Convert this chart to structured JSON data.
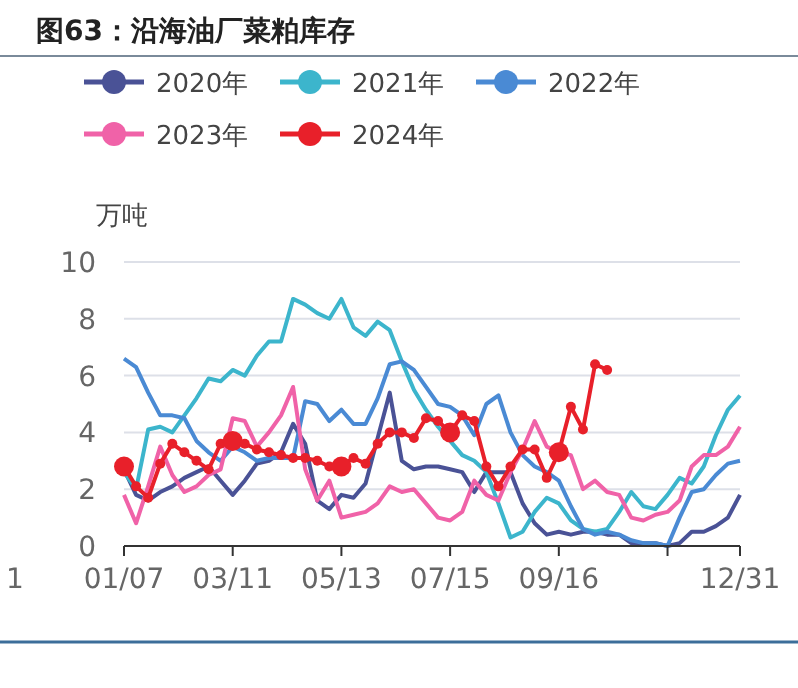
{
  "chart_data": {
    "type": "line",
    "title": "图63：沿海油厂菜粕库存",
    "ylabel": "万吨",
    "annotations": [
      "1"
    ],
    "categories": [
      "01/07",
      null,
      null,
      null,
      null,
      null,
      null,
      null,
      null,
      "03/11",
      null,
      null,
      null,
      null,
      null,
      null,
      null,
      null,
      "05/13",
      null,
      null,
      null,
      null,
      null,
      null,
      null,
      null,
      "07/15",
      null,
      null,
      null,
      null,
      null,
      null,
      null,
      null,
      "09/16",
      null,
      null,
      null,
      null,
      null,
      null,
      null,
      null,
      null,
      null,
      null,
      null,
      null,
      null,
      "12/31"
    ],
    "ylim": [
      0,
      10
    ],
    "yticks": [
      0,
      2,
      4,
      6,
      8,
      10
    ],
    "grid": "y",
    "legend": "top",
    "line_style": "solid",
    "series": [
      {
        "name": "2020年",
        "color": "#4a5296",
        "values": [
          2.7,
          1.8,
          1.6,
          1.9,
          2.1,
          2.4,
          2.6,
          2.8,
          2.3,
          1.8,
          2.3,
          2.9,
          3.0,
          3.3,
          4.3,
          3.6,
          1.6,
          1.3,
          1.8,
          1.7,
          2.2,
          3.8,
          5.4,
          3.0,
          2.7,
          2.8,
          2.8,
          2.7,
          2.6,
          1.9,
          2.6,
          2.6,
          2.6,
          1.5,
          0.8,
          0.4,
          0.5,
          0.4,
          0.5,
          0.5,
          0.4,
          0.4,
          0.1,
          0.1,
          0.1,
          0.0,
          0.1,
          0.5,
          0.5,
          0.7,
          1.0,
          1.8
        ]
      },
      {
        "name": "2021年",
        "color": "#3cb5cc",
        "values": [
          2.6,
          2.0,
          4.1,
          4.2,
          4.0,
          4.6,
          5.2,
          5.9,
          5.8,
          6.2,
          6.0,
          6.7,
          7.2,
          7.2,
          8.7,
          8.5,
          8.2,
          8.0,
          8.7,
          7.7,
          7.4,
          7.9,
          7.6,
          6.5,
          5.5,
          4.8,
          4.2,
          3.7,
          3.2,
          3.0,
          2.6,
          1.5,
          0.3,
          0.5,
          1.2,
          1.7,
          1.5,
          0.9,
          0.6,
          0.5,
          0.6,
          1.2,
          1.9,
          1.4,
          1.3,
          1.8,
          2.4,
          2.2,
          2.8,
          3.9,
          4.8,
          5.3
        ]
      },
      {
        "name": "2022年",
        "color": "#4a8ad4",
        "values": [
          6.6,
          6.3,
          5.4,
          4.6,
          4.6,
          4.5,
          3.7,
          3.3,
          3.0,
          3.5,
          3.3,
          3.0,
          3.1,
          3.1,
          3.1,
          5.1,
          5.0,
          4.4,
          4.8,
          4.3,
          4.3,
          5.2,
          6.4,
          6.5,
          6.2,
          5.6,
          5.0,
          4.9,
          4.6,
          3.9,
          5.0,
          5.3,
          4.0,
          3.2,
          2.8,
          2.6,
          2.3,
          1.4,
          0.6,
          0.4,
          0.5,
          0.4,
          0.2,
          0.1,
          0.1,
          0.0,
          1.0,
          1.9,
          2.0,
          2.5,
          2.9,
          3.0
        ]
      },
      {
        "name": "2023年",
        "color": "#f062a8",
        "values": [
          1.8,
          0.8,
          2.1,
          3.5,
          2.5,
          1.9,
          2.1,
          2.5,
          2.7,
          4.5,
          4.4,
          3.5,
          4.0,
          4.6,
          5.6,
          2.7,
          1.6,
          2.3,
          1.0,
          1.1,
          1.2,
          1.5,
          2.1,
          1.9,
          2.0,
          1.5,
          1.0,
          0.9,
          1.2,
          2.3,
          1.8,
          1.6,
          2.6,
          3.4,
          4.4,
          3.5,
          3.3,
          3.2,
          2.0,
          2.3,
          1.9,
          1.8,
          1.0,
          0.9,
          1.1,
          1.2,
          1.6,
          2.8,
          3.2,
          3.2,
          3.5,
          4.2
        ]
      },
      {
        "name": "2024年",
        "color": "#e8202a",
        "marker": "circle",
        "values": [
          2.8,
          2.1,
          1.7,
          2.9,
          3.6,
          3.3,
          3.0,
          2.7,
          3.6,
          3.7,
          3.6,
          3.4,
          3.3,
          3.2,
          3.1,
          3.1,
          3.0,
          2.8,
          2.8,
          3.1,
          2.9,
          3.6,
          4.0,
          4.0,
          3.8,
          4.5,
          4.4,
          4.0,
          4.6,
          4.4,
          2.8,
          2.1,
          2.8,
          3.4,
          3.4,
          2.4,
          3.3,
          4.9,
          4.1,
          6.4,
          6.2,
          null,
          null,
          null,
          null,
          null,
          null,
          null,
          null,
          null,
          null,
          null
        ]
      }
    ]
  }
}
